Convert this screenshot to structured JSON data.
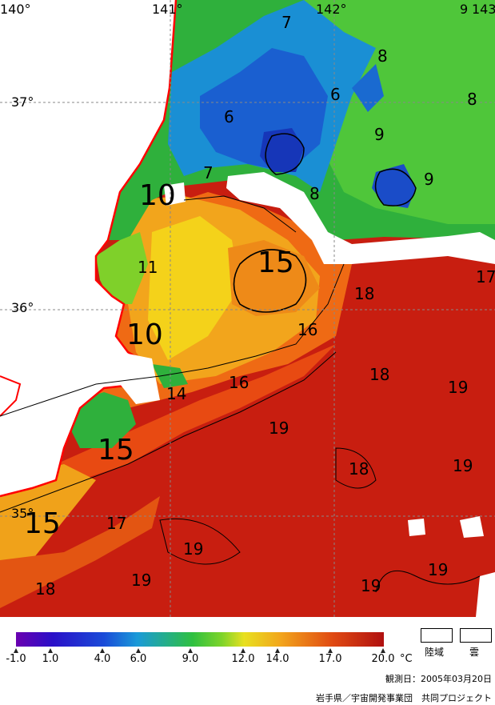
{
  "map": {
    "lon_labels": [
      "140°",
      "141°",
      "142°",
      "9",
      "143"
    ],
    "lat_labels": [
      "37°",
      "36°",
      "35°"
    ],
    "isotherm_labels": [
      {
        "text": "7",
        "size": "m"
      },
      {
        "text": "8",
        "size": "m"
      },
      {
        "text": "6",
        "size": "m"
      },
      {
        "text": "8",
        "size": "m"
      },
      {
        "text": "6",
        "size": "m"
      },
      {
        "text": "9",
        "size": "m"
      },
      {
        "text": "9",
        "size": "m"
      },
      {
        "text": "7",
        "size": "m"
      },
      {
        "text": "8",
        "size": "m"
      },
      {
        "text": "10",
        "size": "l"
      },
      {
        "text": "11",
        "size": "m"
      },
      {
        "text": "15",
        "size": "l"
      },
      {
        "text": "17",
        "size": "m"
      },
      {
        "text": "18",
        "size": "m"
      },
      {
        "text": "10",
        "size": "l"
      },
      {
        "text": "16",
        "size": "m"
      },
      {
        "text": "18",
        "size": "m"
      },
      {
        "text": "14",
        "size": "m"
      },
      {
        "text": "16",
        "size": "m"
      },
      {
        "text": "19",
        "size": "m"
      },
      {
        "text": "19",
        "size": "m"
      },
      {
        "text": "15",
        "size": "l"
      },
      {
        "text": "18",
        "size": "m"
      },
      {
        "text": "19",
        "size": "m"
      },
      {
        "text": "15",
        "size": "l"
      },
      {
        "text": "17",
        "size": "m"
      },
      {
        "text": "19",
        "size": "m"
      },
      {
        "text": "19",
        "size": "m"
      },
      {
        "text": "18",
        "size": "m"
      },
      {
        "text": "19",
        "size": "m"
      },
      {
        "text": "19",
        "size": "m"
      }
    ]
  },
  "legend": {
    "ticks": [
      "-1.0",
      "1.0",
      "4.0",
      "6.0",
      "9.0",
      "12.0",
      "14.0",
      "17.0",
      "20.0"
    ],
    "unit": "°C",
    "land_label": "陸域",
    "cloud_label": "雲",
    "observation_date": "観測日：2005年03月20日",
    "credit": "岩手県／宇宙開発事業団　共同プロジェクト",
    "colors": {
      "land": "#ffffff",
      "coast": "#ff0000",
      "cold": "#6a00b0",
      "warm": "#b01010"
    }
  }
}
